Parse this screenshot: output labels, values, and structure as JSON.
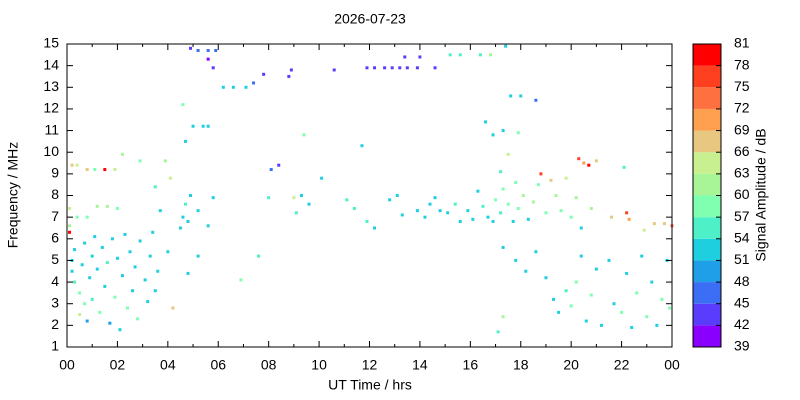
{
  "chart_data": {
    "type": "scatter",
    "title": "2026-07-23",
    "xlabel": "UT Time / hrs",
    "ylabel": "Frequency / MHz",
    "xlim": [
      0,
      24
    ],
    "xticks": [
      {
        "value": 0,
        "label": "00"
      },
      {
        "value": 2,
        "label": "02"
      },
      {
        "value": 4,
        "label": "04"
      },
      {
        "value": 6,
        "label": "06"
      },
      {
        "value": 8,
        "label": "08"
      },
      10,
      12,
      14,
      16,
      18,
      20,
      22,
      {
        "value": 24,
        "label": "00"
      }
    ],
    "ylim": [
      1,
      15
    ],
    "yticks": [
      1,
      2,
      3,
      4,
      5,
      6,
      7,
      8,
      9,
      10,
      11,
      12,
      13,
      14,
      15
    ],
    "colorbar_label": "Signal Amplitude / dB",
    "clim": [
      39,
      81
    ],
    "cticks": [
      39,
      42,
      45,
      48,
      51,
      54,
      57,
      60,
      63,
      66,
      69,
      72,
      75,
      78,
      81
    ],
    "colors": [
      "#8a00ff",
      "#5a3cff",
      "#3c6ef5",
      "#1e9fe8",
      "#1ecfe0",
      "#4ef0c8",
      "#80ffb0",
      "#a8f598",
      "#c8f090",
      "#e8c880",
      "#ffa050",
      "#ff7040",
      "#ff4020",
      "#ff0000"
    ],
    "x": [
      0.1,
      0.1,
      0.1,
      0.2,
      0.4,
      0.8,
      1.1,
      1.5,
      1.9,
      0.2,
      0.2,
      0.3,
      0.3,
      0.5,
      0.5,
      0.6,
      0.7,
      0.7,
      0.8,
      0.9,
      1.0,
      1.0,
      1.1,
      1.2,
      1.3,
      1.4,
      1.5,
      1.6,
      1.7,
      1.8,
      1.9,
      2.0,
      2.1,
      2.2,
      2.3,
      2.4,
      2.5,
      2.6,
      2.7,
      2.8,
      2.9,
      3.1,
      3.2,
      3.3,
      3.4,
      3.5,
      3.6,
      0.4,
      0.8,
      1.2,
      1.6,
      2.0,
      2.2,
      2.9,
      3.5,
      3.7,
      3.9,
      4.0,
      4.1,
      4.2,
      4.5,
      4.6,
      4.7,
      4.8,
      4.9,
      4.6,
      4.7,
      5.0,
      5.4,
      5.6,
      5.2,
      5.6,
      5.8,
      4.9,
      5.2,
      5.6,
      5.9,
      5.6,
      5.8,
      6.2,
      6.6,
      7.1,
      7.4,
      7.8,
      8.8,
      8.9,
      10.6,
      4.8,
      5.2,
      6.9,
      7.6,
      8.0,
      8.1,
      8.4,
      9.0,
      9.1,
      9.4,
      9.3,
      9.6,
      10.1,
      11.1,
      11.4,
      11.7,
      11.9,
      12.2,
      12.8,
      13.1,
      13.3,
      13.9,
      14.2,
      14.4,
      14.6,
      14.8,
      11.9,
      12.2,
      12.6,
      12.9,
      13.2,
      13.5,
      13.9,
      13.4,
      14.0,
      14.6,
      15.2,
      15.6,
      16.4,
      16.8,
      17.4,
      15.1,
      15.4,
      15.6,
      15.9,
      16.1,
      16.3,
      16.5,
      16.7,
      16.9,
      17.0,
      17.2,
      17.3,
      17.5,
      17.7,
      17.8,
      17.9,
      18.1,
      18.3,
      18.5,
      18.7,
      18.8,
      19.0,
      19.2,
      19.4,
      19.6,
      19.8,
      20.0,
      20.2,
      20.4,
      16.6,
      16.9,
      17.3,
      17.2,
      17.6,
      18.0,
      18.6,
      17.9,
      17.5,
      17.3,
      17.8,
      18.2,
      18.6,
      19.0,
      19.3,
      19.5,
      19.8,
      20.0,
      20.2,
      20.4,
      20.6,
      20.8,
      21.0,
      21.2,
      21.5,
      21.7,
      22.0,
      22.2,
      22.4,
      22.6,
      22.8,
      23.0,
      23.2,
      23.4,
      23.6,
      23.8,
      23.9,
      17.3,
      17.1,
      20.3,
      20.5,
      20.7,
      21.0,
      22.1,
      22.2,
      22.3,
      22.9,
      23.3,
      23.7,
      24.0,
      20.8,
      21.6
    ],
    "y": [
      6.3,
      6.6,
      7.4,
      9.4,
      9.4,
      9.2,
      9.2,
      9.2,
      9.2,
      5.0,
      4.5,
      4.0,
      5.5,
      3.5,
      2.5,
      4.8,
      3.0,
      5.8,
      2.2,
      4.2,
      5.2,
      3.2,
      6.1,
      4.6,
      2.6,
      5.6,
      3.8,
      4.9,
      2.1,
      6.0,
      3.3,
      5.1,
      1.8,
      4.3,
      6.2,
      2.8,
      5.4,
      3.6,
      4.7,
      2.3,
      5.9,
      4.1,
      3.1,
      5.2,
      6.3,
      3.6,
      4.5,
      7.0,
      7.0,
      7.5,
      7.5,
      7.4,
      9.9,
      9.6,
      8.4,
      7.3,
      9.6,
      5.4,
      8.8,
      2.8,
      6.5,
      7.0,
      7.6,
      6.8,
      8.0,
      12.2,
      10.5,
      11.2,
      11.2,
      11.2,
      7.3,
      6.6,
      7.9,
      14.8,
      14.7,
      14.7,
      14.7,
      14.3,
      13.9,
      13.0,
      13.0,
      13.0,
      13.2,
      13.6,
      13.5,
      13.8,
      13.8,
      4.4,
      5.2,
      4.1,
      5.2,
      7.9,
      9.2,
      9.4,
      7.9,
      7.2,
      10.8,
      8.0,
      7.6,
      8.8,
      7.8,
      7.4,
      10.3,
      6.8,
      6.5,
      7.8,
      8.0,
      7.1,
      7.3,
      7.0,
      7.6,
      7.9,
      7.3,
      13.9,
      13.9,
      13.9,
      13.9,
      13.9,
      13.9,
      13.9,
      14.4,
      14.4,
      13.9,
      14.5,
      14.5,
      14.5,
      14.5,
      14.9,
      7.2,
      7.6,
      6.8,
      7.3,
      6.9,
      8.2,
      7.5,
      7.0,
      6.8,
      7.8,
      7.2,
      8.3,
      7.6,
      6.8,
      8.6,
      7.4,
      8.0,
      6.9,
      7.7,
      8.5,
      9.0,
      7.2,
      8.7,
      8.0,
      7.3,
      8.8,
      7.0,
      7.9,
      6.5,
      11.4,
      10.8,
      11.0,
      9.1,
      12.6,
      12.6,
      12.4,
      10.9,
      9.9,
      5.6,
      5.0,
      4.5,
      5.4,
      4.2,
      3.2,
      2.6,
      3.6,
      2.9,
      4.0,
      5.2,
      2.2,
      3.4,
      4.6,
      2.0,
      5.0,
      3.0,
      2.6,
      4.4,
      1.9,
      3.5,
      5.2,
      2.4,
      4.0,
      2.0,
      3.2,
      5.0,
      2.8,
      2.4,
      1.7,
      9.7,
      9.5,
      9.4,
      9.6,
      9.3,
      7.2,
      6.9,
      6.4,
      6.7,
      6.7,
      6.6,
      7.4,
      7.0
    ],
    "values": [
      78,
      60,
      63,
      66,
      63,
      66,
      57,
      78,
      63,
      51,
      51,
      54,
      51,
      57,
      63,
      51,
      57,
      51,
      48,
      51,
      51,
      54,
      51,
      51,
      57,
      51,
      51,
      54,
      48,
      51,
      57,
      51,
      51,
      51,
      51,
      57,
      51,
      51,
      51,
      57,
      51,
      51,
      51,
      51,
      51,
      51,
      51,
      57,
      57,
      60,
      60,
      57,
      60,
      57,
      54,
      51,
      60,
      51,
      63,
      66,
      51,
      51,
      54,
      51,
      51,
      57,
      51,
      51,
      51,
      51,
      51,
      51,
      51,
      42,
      45,
      45,
      45,
      39,
      42,
      51,
      51,
      51,
      45,
      42,
      42,
      42,
      42,
      51,
      51,
      57,
      54,
      54,
      45,
      42,
      63,
      54,
      57,
      51,
      51,
      51,
      54,
      54,
      51,
      54,
      51,
      51,
      51,
      51,
      51,
      51,
      51,
      51,
      51,
      42,
      42,
      42,
      42,
      42,
      42,
      42,
      42,
      42,
      42,
      54,
      54,
      54,
      60,
      51,
      51,
      54,
      51,
      51,
      51,
      51,
      54,
      51,
      51,
      57,
      54,
      57,
      57,
      51,
      57,
      57,
      60,
      51,
      60,
      57,
      75,
      57,
      66,
      60,
      57,
      63,
      57,
      60,
      51,
      51,
      51,
      51,
      54,
      51,
      51,
      45,
      57,
      63,
      51,
      51,
      51,
      51,
      51,
      51,
      51,
      54,
      57,
      57,
      51,
      51,
      57,
      51,
      51,
      51,
      51,
      57,
      51,
      51,
      57,
      51,
      57,
      51,
      51,
      57,
      51,
      57,
      60,
      54,
      75,
      69,
      78,
      66,
      54,
      75,
      69,
      63,
      66,
      66,
      72,
      60,
      66
    ]
  }
}
